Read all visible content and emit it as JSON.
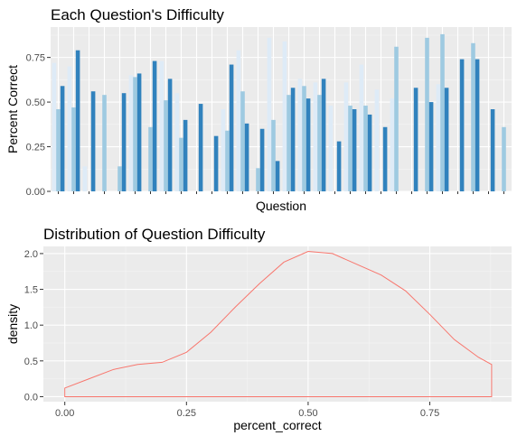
{
  "chart_data": [
    {
      "type": "bar",
      "title": "Each Question's Difficulty",
      "xlabel": "Question",
      "ylabel": "Percent Correct",
      "ylim": [
        0,
        0.92
      ],
      "y_ticks": [
        "0.00",
        "0.25",
        "0.50",
        "0.75"
      ],
      "y_tick_values": [
        0,
        0.25,
        0.5,
        0.75
      ],
      "grid": true,
      "show_x_tick_labels": false,
      "color_scale": [
        "#deebf7",
        "#9ecae1",
        "#3182bd"
      ],
      "groups": [
        {
          "values": [
            0.72,
            0.46,
            0.59
          ]
        },
        {
          "values": [
            0.7,
            0.47,
            0.79
          ]
        },
        {
          "values": [
            0.14,
            0.0,
            0.56
          ]
        },
        {
          "values": [
            0.0,
            0.54,
            0.0
          ]
        },
        {
          "values": [
            0.0,
            0.14,
            0.55
          ]
        },
        {
          "values": [
            0.65,
            0.64,
            0.66
          ]
        },
        {
          "values": [
            0.0,
            0.36,
            0.73
          ]
        },
        {
          "values": [
            0.73,
            0.51,
            0.63
          ]
        },
        {
          "values": [
            0.55,
            0.3,
            0.4
          ]
        },
        {
          "values": [
            0.0,
            0.0,
            0.49
          ]
        },
        {
          "values": [
            0.0,
            0.0,
            0.31
          ]
        },
        {
          "values": [
            0.46,
            0.34,
            0.71
          ]
        },
        {
          "values": [
            0.79,
            0.56,
            0.38
          ]
        },
        {
          "values": [
            0.0,
            0.13,
            0.35
          ]
        },
        {
          "values": [
            0.86,
            0.4,
            0.17
          ]
        },
        {
          "values": [
            0.84,
            0.54,
            0.58
          ]
        },
        {
          "values": [
            0.63,
            0.59,
            0.52
          ]
        },
        {
          "values": [
            0.61,
            0.54,
            0.63
          ]
        },
        {
          "values": [
            0.48,
            0.0,
            0.28
          ]
        },
        {
          "values": [
            0.61,
            0.48,
            0.46
          ]
        },
        {
          "values": [
            0.71,
            0.48,
            0.43
          ]
        },
        {
          "values": [
            0.57,
            0.0,
            0.36
          ]
        },
        {
          "values": [
            0.52,
            0.81,
            0.0
          ]
        },
        {
          "values": [
            0.0,
            0.0,
            0.58
          ]
        },
        {
          "values": [
            0.0,
            0.86,
            0.5
          ]
        },
        {
          "values": [
            0.6,
            0.88,
            0.58
          ]
        },
        {
          "values": [
            0.0,
            0.0,
            0.74
          ]
        },
        {
          "values": [
            0.0,
            0.83,
            0.74
          ]
        },
        {
          "values": [
            0.0,
            0.0,
            0.46
          ]
        },
        {
          "values": [
            0.0,
            0.36,
            0.0
          ]
        }
      ]
    },
    {
      "type": "line",
      "title": "Distribution of Question Difficulty",
      "xlabel": "percent_correct",
      "ylabel": "density",
      "xlim": [
        -0.044,
        0.918
      ],
      "ylim": [
        -0.07,
        2.1
      ],
      "x_ticks": [
        "0.00",
        "0.25",
        "0.50",
        "0.75"
      ],
      "x_tick_values": [
        0,
        0.25,
        0.5,
        0.75
      ],
      "y_ticks": [
        "0.0",
        "0.5",
        "1.0",
        "1.5",
        "2.0"
      ],
      "y_tick_values": [
        0,
        0.5,
        1.0,
        1.5,
        2.0
      ],
      "grid": true,
      "line_color": "#f8766d",
      "x": [
        0.0,
        0.05,
        0.1,
        0.15,
        0.2,
        0.25,
        0.3,
        0.35,
        0.4,
        0.45,
        0.5,
        0.55,
        0.6,
        0.65,
        0.7,
        0.75,
        0.8,
        0.85,
        0.877
      ],
      "y": [
        0.12,
        0.25,
        0.38,
        0.45,
        0.48,
        0.62,
        0.9,
        1.25,
        1.58,
        1.88,
        2.03,
        2.0,
        1.85,
        1.7,
        1.48,
        1.15,
        0.8,
        0.55,
        0.45
      ]
    }
  ]
}
